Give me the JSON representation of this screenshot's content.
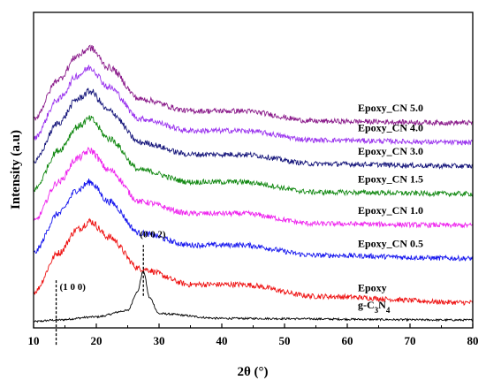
{
  "chart_data": {
    "type": "line",
    "xlabel": "2θ (°)",
    "ylabel": "Intensity (a.u)",
    "xlim": [
      10,
      80
    ],
    "xticks": [
      10,
      20,
      30,
      40,
      50,
      60,
      70,
      80
    ],
    "grid": false,
    "y_units": "arbitrary (stacked, offset traces)",
    "series": [
      {
        "name": "g-C3N4",
        "color": "#000000",
        "label_html": "g-C<tspan baseline-shift='sub' font-size='9'>3</tspan>N<tspan baseline-shift='sub' font-size='9'>4</tspan>",
        "x": [
          10,
          13.5,
          20,
          25,
          26.5,
          27.5,
          28.5,
          30,
          40,
          80
        ],
        "y": [
          0.08,
          0.1,
          0.14,
          0.22,
          0.45,
          0.72,
          0.38,
          0.18,
          0.12,
          0.1
        ]
      },
      {
        "name": "Epoxy",
        "color": "#ee1111",
        "x": [
          10,
          14,
          17,
          19,
          22,
          27,
          35,
          43,
          55,
          80
        ],
        "y": [
          0.45,
          0.95,
          1.25,
          1.35,
          1.15,
          0.75,
          0.55,
          0.55,
          0.4,
          0.32
        ]
      },
      {
        "name": "Epoxy_CN 0.5",
        "color": "#1515ee",
        "x": [
          10,
          14,
          17,
          19,
          22,
          27,
          35,
          43,
          55,
          80
        ],
        "y": [
          0.95,
          1.45,
          1.75,
          1.85,
          1.6,
          1.2,
          1.05,
          1.05,
          0.92,
          0.88
        ]
      },
      {
        "name": "Epoxy_CN 1.0",
        "color": "#ee22ee",
        "x": [
          10,
          14,
          17,
          19,
          22,
          27,
          35,
          43,
          55,
          80
        ],
        "y": [
          1.35,
          1.85,
          2.15,
          2.25,
          2.0,
          1.6,
          1.45,
          1.45,
          1.32,
          1.3
        ]
      },
      {
        "name": "Epoxy_CN 1.5",
        "color": "#118811",
        "x": [
          10,
          14,
          17,
          19,
          22,
          27,
          35,
          43,
          55,
          80
        ],
        "y": [
          1.75,
          2.25,
          2.55,
          2.65,
          2.4,
          2.0,
          1.85,
          1.85,
          1.72,
          1.7
        ]
      },
      {
        "name": "Epoxy_CN 3.0",
        "color": "#14147a",
        "x": [
          10,
          14,
          17,
          19,
          22,
          27,
          35,
          43,
          55,
          80
        ],
        "y": [
          2.1,
          2.6,
          2.9,
          3.0,
          2.75,
          2.35,
          2.2,
          2.2,
          2.08,
          2.05
        ]
      },
      {
        "name": "Epoxy_CN 4.0",
        "color": "#9a33ee",
        "x": [
          10,
          14,
          17,
          19,
          22,
          27,
          35,
          43,
          55,
          80
        ],
        "y": [
          2.4,
          2.9,
          3.2,
          3.3,
          3.05,
          2.65,
          2.5,
          2.5,
          2.38,
          2.35
        ]
      },
      {
        "name": "Epoxy_CN 5.0",
        "color": "#8a1a8a",
        "x": [
          10,
          14,
          17,
          19,
          22,
          27,
          35,
          43,
          55,
          80
        ],
        "y": [
          2.65,
          3.15,
          3.45,
          3.55,
          3.3,
          2.9,
          2.75,
          2.75,
          2.62,
          2.6
        ]
      }
    ],
    "annotations": [
      {
        "text": "(1 0 0)",
        "x": 13.6
      },
      {
        "text": "(0 0 2)",
        "x": 27.5
      }
    ]
  }
}
